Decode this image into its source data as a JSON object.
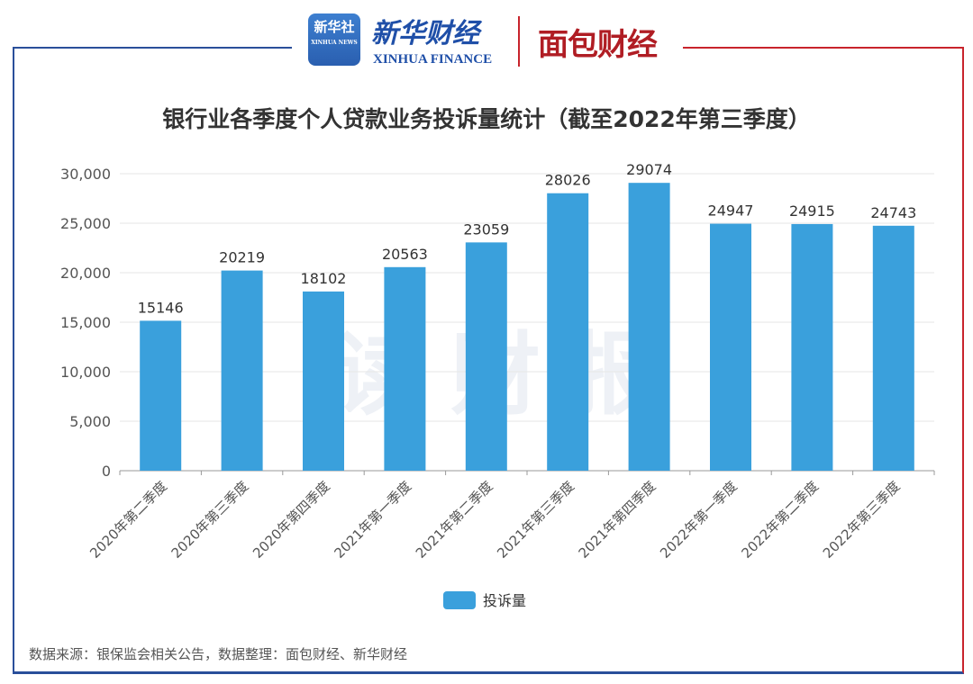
{
  "header": {
    "logo_xinhua_news": "新华社",
    "logo_xinhua_news_en": "XINHUA NEWS",
    "logo_xinhua_finance": "新华财经",
    "logo_xinhua_finance_en": "XINHUA FINANCE",
    "logo_mianbao": "面包财经"
  },
  "watermark": "读财报",
  "source": "数据来源：银保监会相关公告，数据整理：面包财经、新华财经",
  "colors": {
    "bar": "#3aa0dc",
    "frame_left": "#2a4f9a",
    "frame_right": "#c8242c"
  },
  "chart_data": {
    "type": "bar",
    "title": "银行业各季度个人贷款业务投诉量统计（截至2022年第三季度）",
    "categories": [
      "2020年第二季度",
      "2020年第三季度",
      "2020年第四季度",
      "2021年第一季度",
      "2021年第二季度",
      "2021年第三季度",
      "2021年第四季度",
      "2022年第一季度",
      "2022年第二季度",
      "2022年第三季度"
    ],
    "series": [
      {
        "name": "投诉量",
        "values": [
          15146,
          20219,
          18102,
          20563,
          23059,
          28026,
          29074,
          24947,
          24915,
          24743
        ]
      }
    ],
    "ylim": [
      0,
      30000
    ],
    "yticks": [
      0,
      5000,
      10000,
      15000,
      20000,
      25000,
      30000
    ],
    "ytick_labels": [
      "0",
      "5,000",
      "10,000",
      "15,000",
      "20,000",
      "25,000",
      "30,000"
    ],
    "grid": true,
    "legend": "bottom-center",
    "xlabel": "",
    "ylabel": ""
  }
}
